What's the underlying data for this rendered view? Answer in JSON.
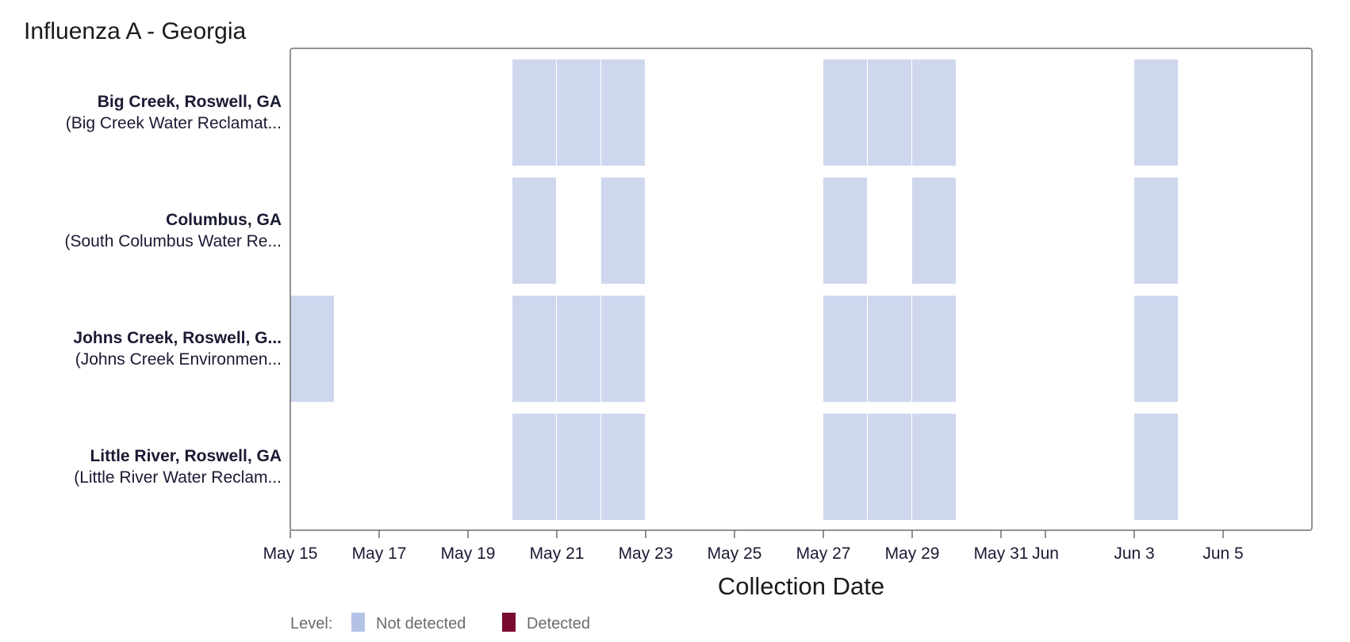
{
  "chart_data": {
    "type": "heatmap",
    "title": "Influenza A - Georgia",
    "xlabel": "Collection Date",
    "x_range": [
      "2024-05-15",
      "2024-06-07"
    ],
    "x_ticks": [
      {
        "date": "2024-05-15",
        "label": "May 15"
      },
      {
        "date": "2024-05-17",
        "label": "May 17"
      },
      {
        "date": "2024-05-19",
        "label": "May 19"
      },
      {
        "date": "2024-05-21",
        "label": "May 21"
      },
      {
        "date": "2024-05-23",
        "label": "May 23"
      },
      {
        "date": "2024-05-25",
        "label": "May 25"
      },
      {
        "date": "2024-05-27",
        "label": "May 27"
      },
      {
        "date": "2024-05-29",
        "label": "May 29"
      },
      {
        "date": "2024-05-31",
        "label": "May 31"
      },
      {
        "date": "2024-06-01",
        "label": "Jun"
      },
      {
        "date": "2024-06-03",
        "label": "Jun 3"
      },
      {
        "date": "2024-06-05",
        "label": "Jun 5"
      }
    ],
    "sites": [
      {
        "name": "Big Creek, Roswell, GA",
        "subtitle": "(Big Creek Water Reclamat...",
        "samples": [
          {
            "date": "2024-05-20",
            "level": "Not detected"
          },
          {
            "date": "2024-05-21",
            "level": "Not detected"
          },
          {
            "date": "2024-05-22",
            "level": "Not detected"
          },
          {
            "date": "2024-05-27",
            "level": "Not detected"
          },
          {
            "date": "2024-05-28",
            "level": "Not detected"
          },
          {
            "date": "2024-05-29",
            "level": "Not detected"
          },
          {
            "date": "2024-06-03",
            "level": "Not detected"
          }
        ]
      },
      {
        "name": "Columbus, GA",
        "subtitle": "(South Columbus Water Re...",
        "samples": [
          {
            "date": "2024-05-20",
            "level": "Not detected"
          },
          {
            "date": "2024-05-22",
            "level": "Not detected"
          },
          {
            "date": "2024-05-27",
            "level": "Not detected"
          },
          {
            "date": "2024-05-29",
            "level": "Not detected"
          },
          {
            "date": "2024-06-03",
            "level": "Not detected"
          }
        ]
      },
      {
        "name": "Johns Creek, Roswell, G...",
        "subtitle": "(Johns Creek Environmen...",
        "samples": [
          {
            "date": "2024-05-15",
            "level": "Not detected"
          },
          {
            "date": "2024-05-20",
            "level": "Not detected"
          },
          {
            "date": "2024-05-21",
            "level": "Not detected"
          },
          {
            "date": "2024-05-22",
            "level": "Not detected"
          },
          {
            "date": "2024-05-27",
            "level": "Not detected"
          },
          {
            "date": "2024-05-28",
            "level": "Not detected"
          },
          {
            "date": "2024-05-29",
            "level": "Not detected"
          },
          {
            "date": "2024-06-03",
            "level": "Not detected"
          }
        ]
      },
      {
        "name": "Little River, Roswell, GA",
        "subtitle": "(Little River Water Reclam...",
        "samples": [
          {
            "date": "2024-05-20",
            "level": "Not detected"
          },
          {
            "date": "2024-05-21",
            "level": "Not detected"
          },
          {
            "date": "2024-05-22",
            "level": "Not detected"
          },
          {
            "date": "2024-05-27",
            "level": "Not detected"
          },
          {
            "date": "2024-05-28",
            "level": "Not detected"
          },
          {
            "date": "2024-05-29",
            "level": "Not detected"
          },
          {
            "date": "2024-06-03",
            "level": "Not detected"
          }
        ]
      }
    ],
    "legend": {
      "title": "Level:",
      "placement": "bottom-left",
      "items": [
        {
          "label": "Not detected",
          "color": "#b4c2e6"
        },
        {
          "label": "Detected",
          "color": "#7a0a30"
        }
      ]
    },
    "cell_color": "#cfd7ee"
  }
}
